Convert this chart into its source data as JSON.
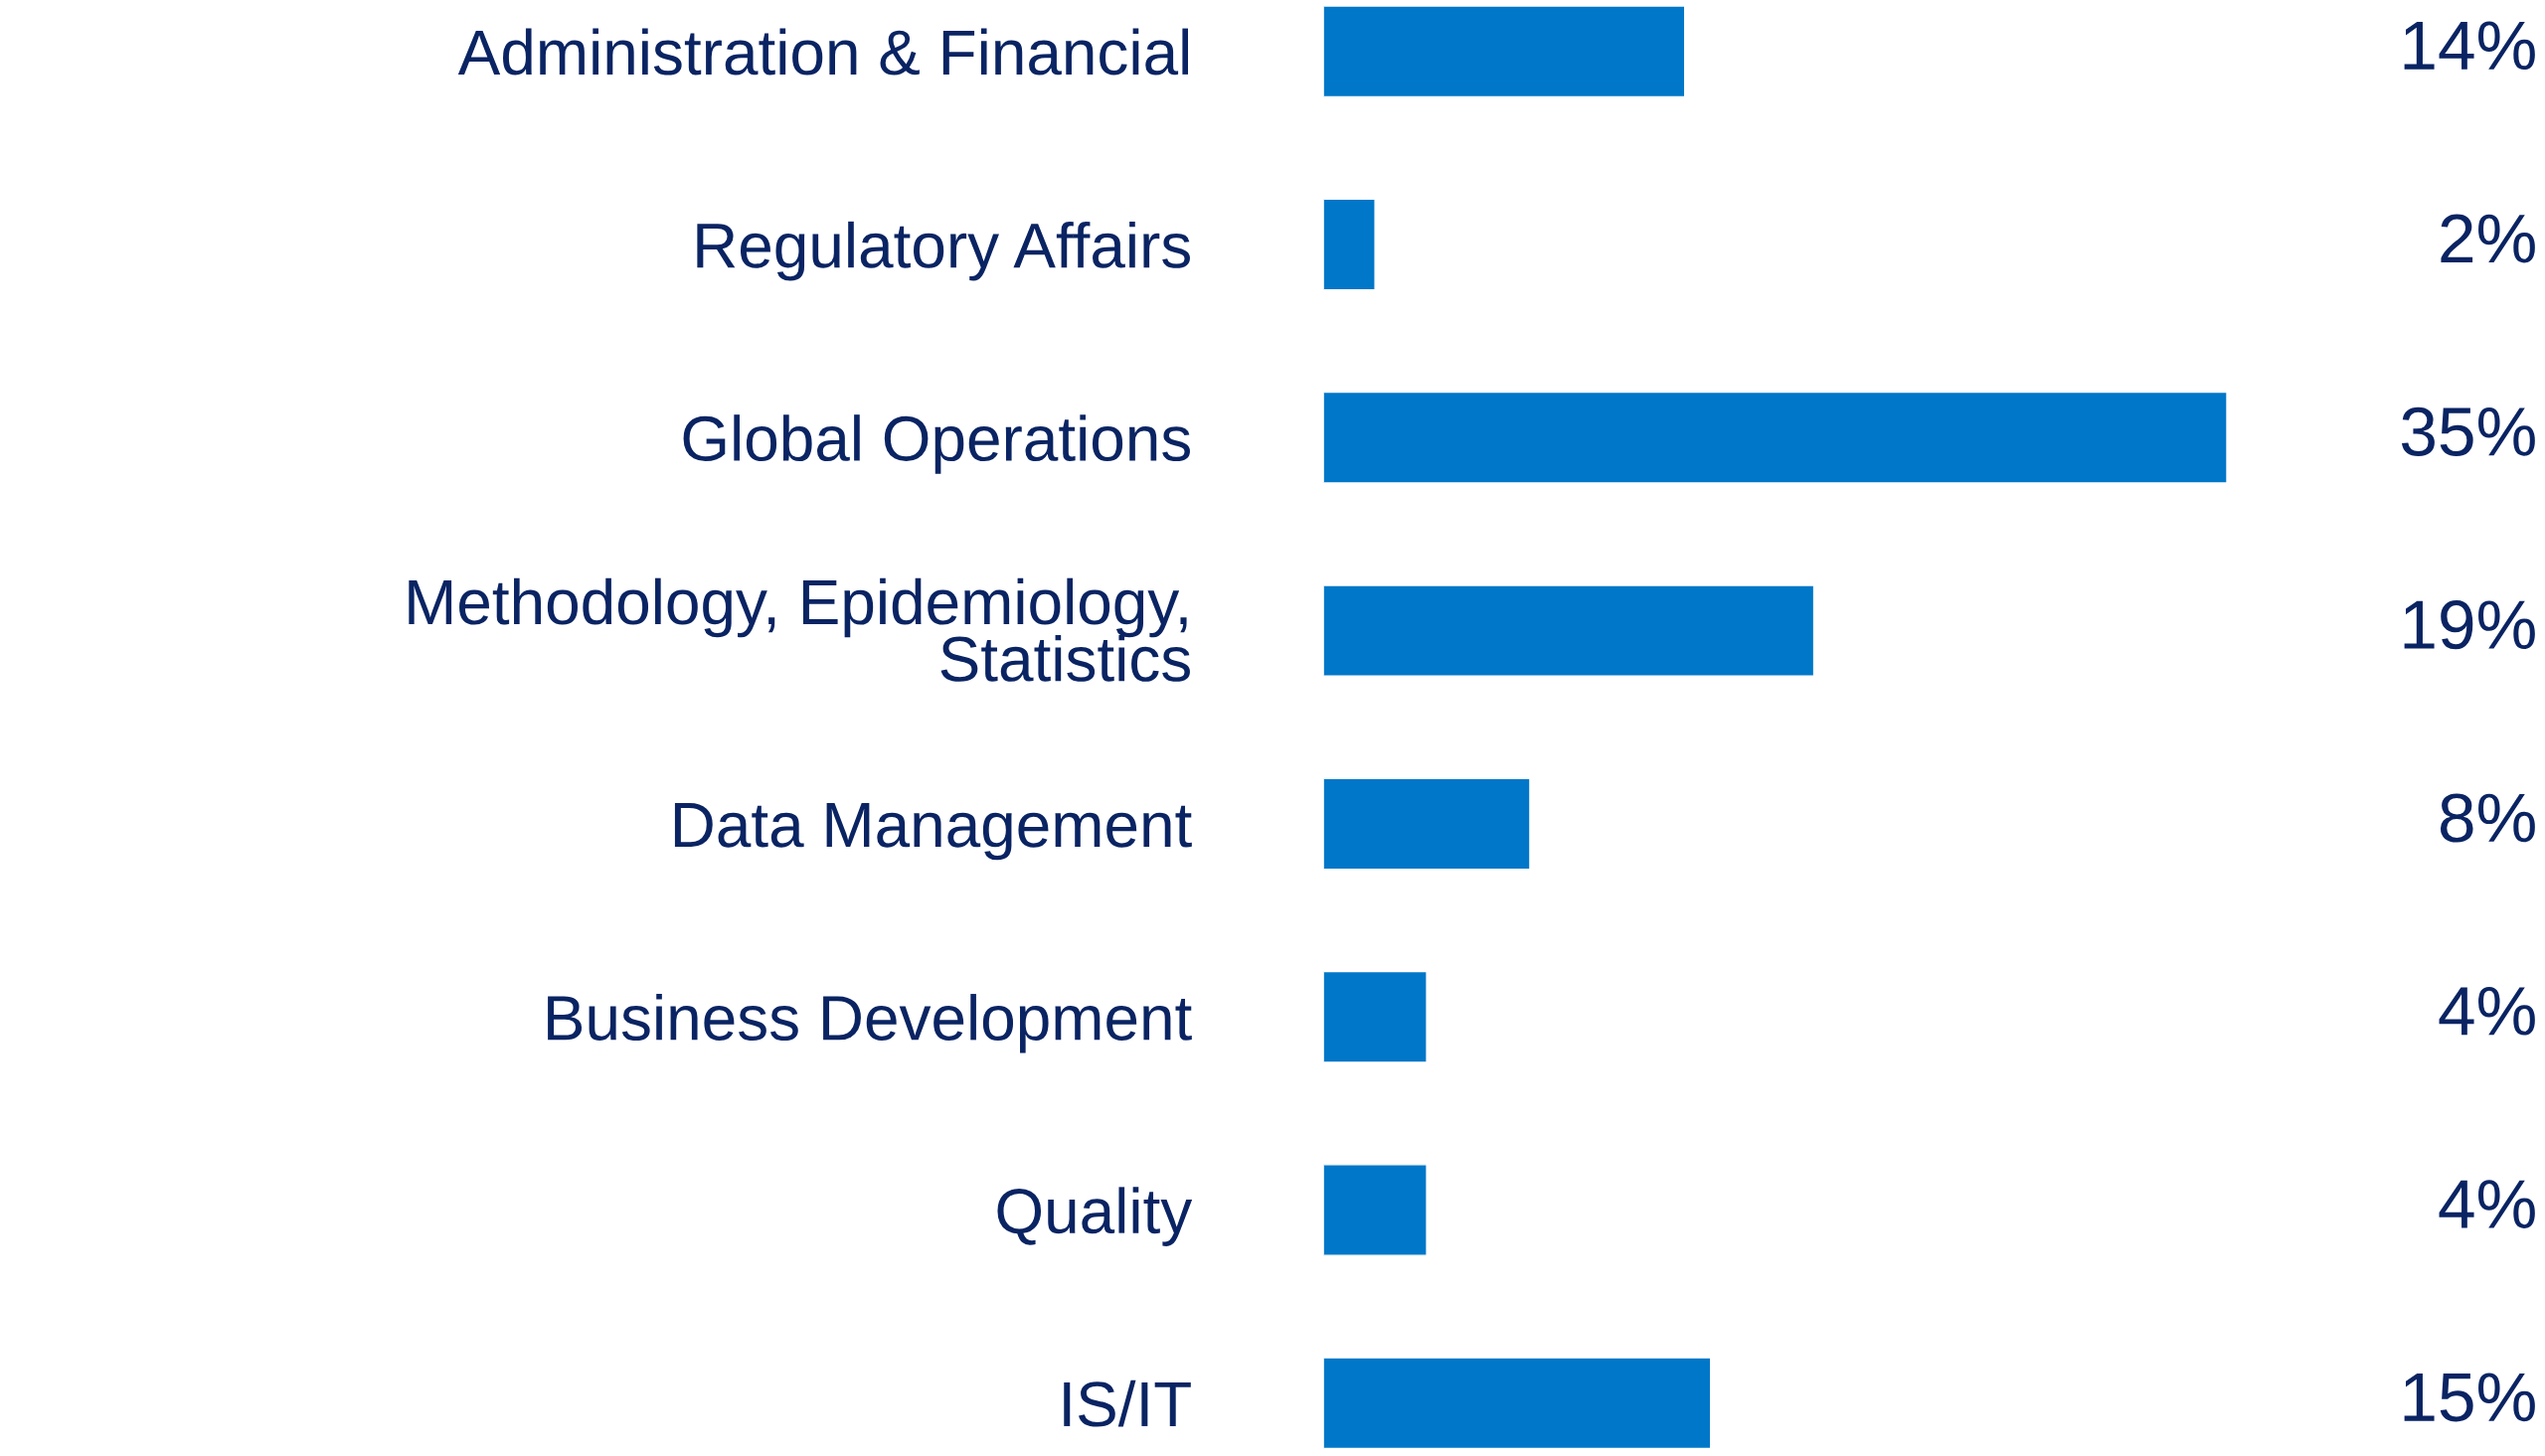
{
  "chart_data": {
    "type": "bar",
    "orientation": "horizontal",
    "categories": [
      "Administration & Financial",
      "Regulatory Affairs",
      "Global Operations",
      "Methodology, Epidemiology,\nStatistics",
      "Data Management",
      "Business Development",
      "Quality",
      "IS/IT"
    ],
    "values": [
      14,
      2,
      35,
      19,
      8,
      4,
      4,
      15
    ],
    "value_labels": [
      "14%",
      "2%",
      "35%",
      "19%",
      "8%",
      "4%",
      "4%",
      "15%"
    ],
    "color": "#0077c8"
  }
}
